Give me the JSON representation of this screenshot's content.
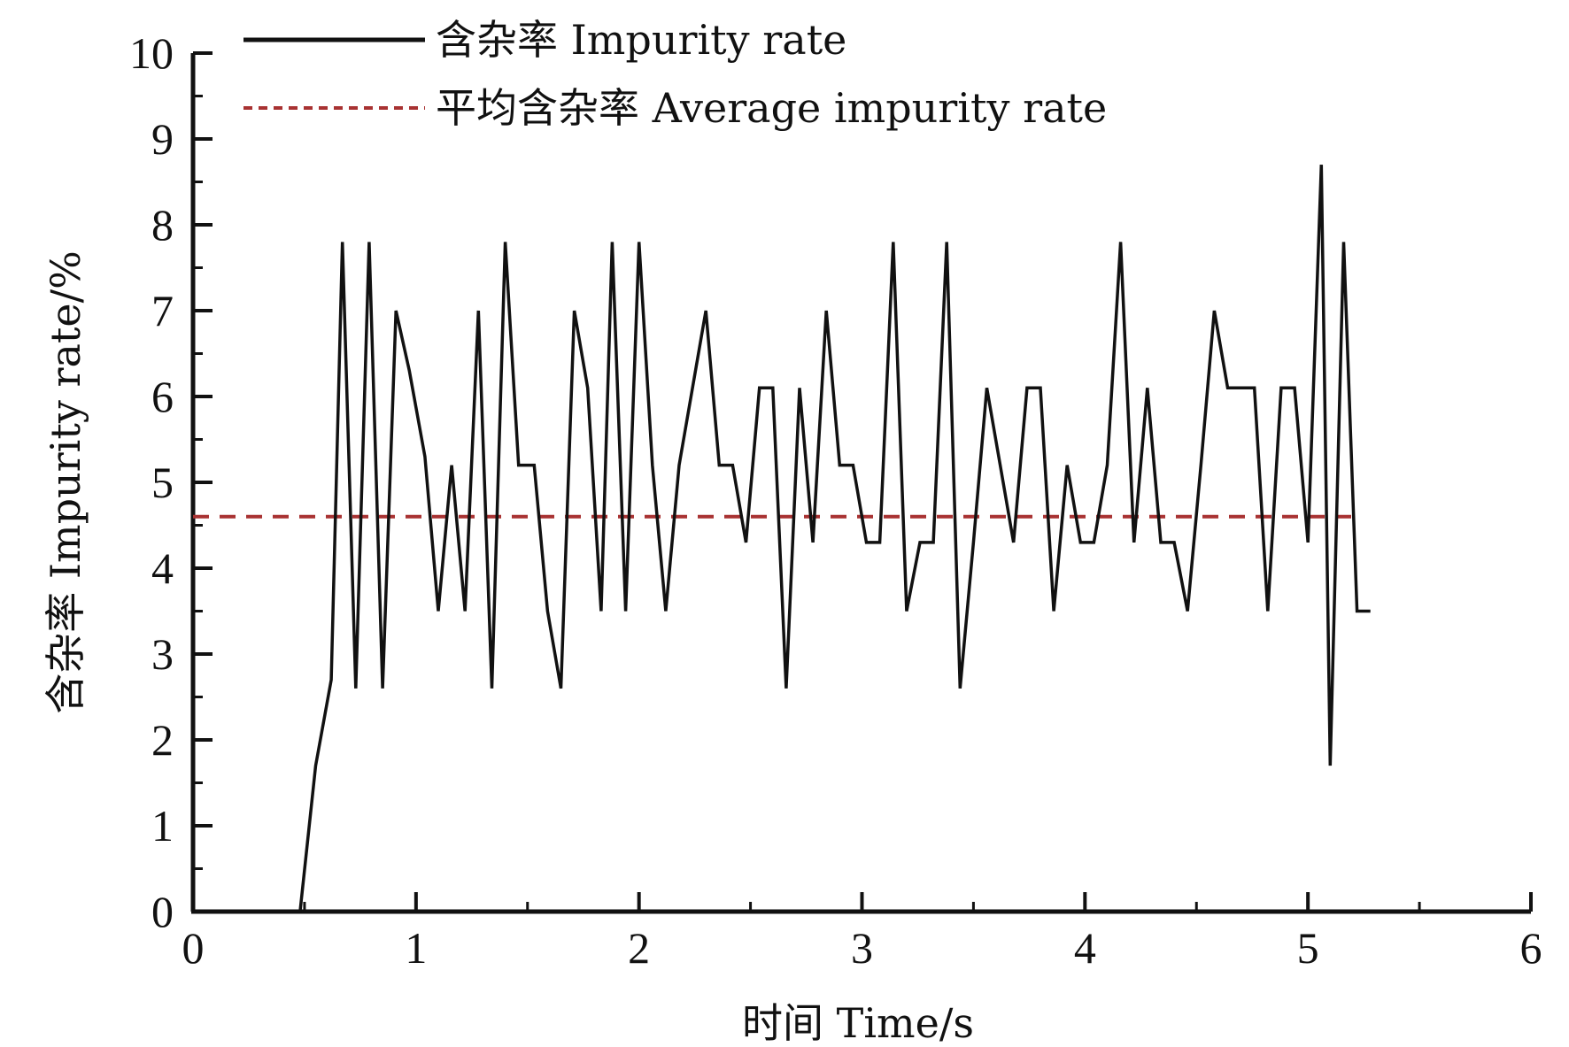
{
  "chart_data": {
    "type": "line",
    "xlabel": "时间 Time/s",
    "ylabel": "含杂率 Impurity rate/%",
    "xlim": [
      0,
      6
    ],
    "ylim": [
      0,
      10
    ],
    "x_ticks": [
      "0",
      "1",
      "2",
      "3",
      "4",
      "5",
      "6"
    ],
    "y_ticks": [
      "0",
      "1",
      "2",
      "3",
      "4",
      "5",
      "6",
      "7",
      "8",
      "9",
      "10"
    ],
    "grid": false,
    "legend_position": "top-left",
    "colors": {
      "impurity": "#111111",
      "average": "#a83232"
    },
    "series": [
      {
        "name": "含杂率 Impurity rate",
        "style": "solid",
        "x": [
          0,
          0.48,
          0.55,
          0.62,
          0.67,
          0.73,
          0.79,
          0.85,
          0.91,
          0.97,
          1.04,
          1.1,
          1.16,
          1.22,
          1.28,
          1.34,
          1.4,
          1.46,
          1.53,
          1.59,
          1.65,
          1.71,
          1.77,
          1.83,
          1.88,
          1.94,
          2.0,
          2.06,
          2.12,
          2.18,
          2.24,
          2.3,
          2.36,
          2.42,
          2.48,
          2.54,
          2.6,
          2.66,
          2.72,
          2.78,
          2.84,
          2.9,
          2.96,
          3.02,
          3.08,
          3.14,
          3.2,
          3.26,
          3.32,
          3.38,
          3.44,
          3.5,
          3.56,
          3.62,
          3.68,
          3.74,
          3.8,
          3.86,
          3.92,
          3.98,
          4.04,
          4.1,
          4.16,
          4.22,
          4.28,
          4.34,
          4.4,
          4.46,
          4.52,
          4.58,
          4.64,
          4.7,
          4.76,
          4.82,
          4.88,
          4.94,
          5.0,
          5.06,
          5.1,
          5.16,
          5.22,
          5.28
        ],
        "y": [
          0,
          0,
          1.7,
          2.7,
          7.8,
          2.6,
          7.8,
          2.6,
          7.0,
          6.3,
          5.3,
          3.5,
          5.2,
          3.5,
          7.0,
          2.6,
          7.8,
          5.2,
          5.2,
          3.5,
          2.6,
          7.0,
          6.1,
          3.5,
          7.8,
          3.5,
          7.8,
          5.2,
          3.5,
          5.2,
          6.1,
          7.0,
          5.2,
          5.2,
          4.3,
          6.1,
          6.1,
          2.6,
          6.1,
          4.3,
          7.0,
          5.2,
          5.2,
          4.3,
          4.3,
          7.8,
          3.5,
          4.3,
          4.3,
          7.8,
          2.6,
          4.3,
          6.1,
          5.2,
          4.3,
          6.1,
          6.1,
          3.5,
          5.2,
          4.3,
          4.3,
          5.2,
          7.8,
          4.3,
          6.1,
          4.3,
          4.3,
          3.5,
          5.2,
          7.0,
          6.1,
          6.1,
          6.1,
          3.5,
          6.1,
          6.1,
          4.3,
          8.7,
          1.7,
          7.8,
          3.5,
          3.5
        ]
      },
      {
        "name": "平均含杂率 Average impurity rate",
        "style": "dashed",
        "x": [
          0,
          5.2
        ],
        "y": [
          4.6,
          4.6
        ]
      }
    ]
  }
}
